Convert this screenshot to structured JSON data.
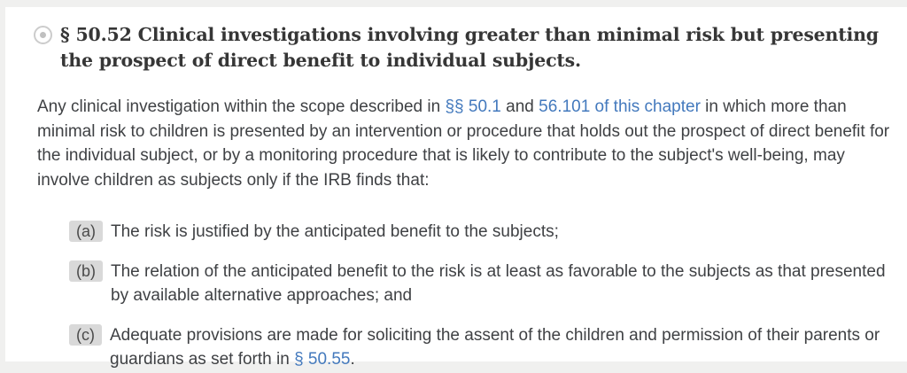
{
  "colors": {
    "page_frame": "#f0f0ef",
    "card_background": "#ffffff",
    "heading_text": "#363636",
    "body_text": "#3f4144",
    "link": "#4379bd",
    "label_badge_bg": "#d9d9d9",
    "label_badge_text": "#4a4a4a",
    "anchor_icon_ring": "#cccccc",
    "anchor_icon_dot": "#c0c0c0"
  },
  "section": {
    "heading": "§ 50.52 Clinical investigations involving greater than minimal risk but presenting the prospect of direct benefit to individual subjects.",
    "paragraph_segments": [
      {
        "type": "text",
        "text": "Any clinical investigation within the scope described in "
      },
      {
        "type": "link",
        "text": "§§ 50.1"
      },
      {
        "type": "text",
        "text": " and "
      },
      {
        "type": "link",
        "text": "56.101 of this chapter"
      },
      {
        "type": "text",
        "text": " in which more than minimal risk to children is presented by an intervention or procedure that holds out the prospect of direct benefit for the individual subject, or by a monitoring procedure that is likely to contribute to the subject's well-being, may involve children as subjects only if the IRB finds that:"
      }
    ],
    "list_items": [
      {
        "label": "(a)",
        "segments": [
          {
            "type": "text",
            "text": "The risk is justified by the anticipated benefit to the subjects;"
          }
        ]
      },
      {
        "label": "(b)",
        "segments": [
          {
            "type": "text",
            "text": "The relation of the anticipated benefit to the risk is at least as favorable to the subjects as that presented by available alternative approaches; and"
          }
        ]
      },
      {
        "label": "(c)",
        "segments": [
          {
            "type": "text",
            "text": "Adequate provisions are made for soliciting the assent of the children and permission of their parents or guardians as set forth in "
          },
          {
            "type": "link",
            "text": "§ 50.55"
          },
          {
            "type": "text",
            "text": "."
          }
        ]
      }
    ]
  }
}
